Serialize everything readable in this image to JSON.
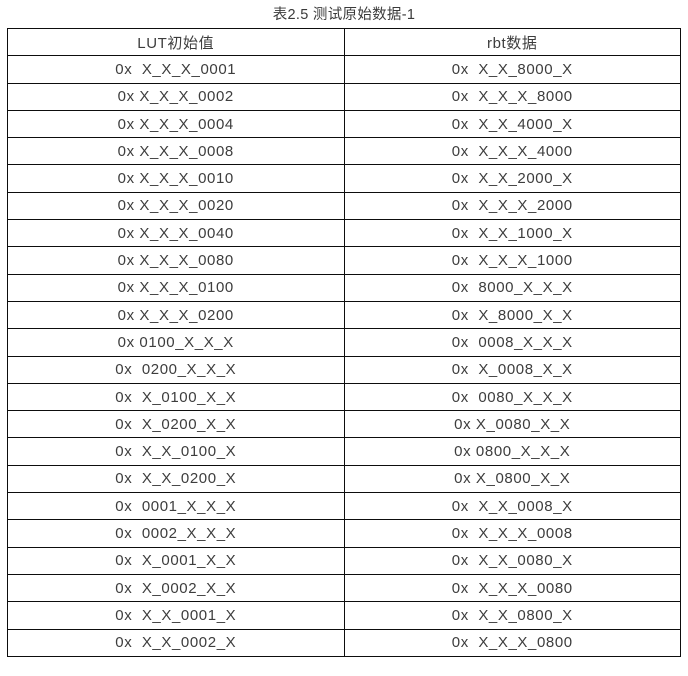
{
  "title": "表2.5 测试原始数据-1",
  "table": {
    "headers": [
      "LUT初始值",
      "rbt数据"
    ],
    "rows": [
      [
        "0x  X_X_X_0001",
        "0x  X_X_8000_X"
      ],
      [
        "0x X_X_X_0002",
        "0x  X_X_X_8000"
      ],
      [
        "0x X_X_X_0004",
        "0x  X_X_4000_X"
      ],
      [
        "0x X_X_X_0008",
        "0x  X_X_X_4000"
      ],
      [
        "0x X_X_X_0010",
        "0x  X_X_2000_X"
      ],
      [
        "0x X_X_X_0020",
        "0x  X_X_X_2000"
      ],
      [
        "0x X_X_X_0040",
        "0x  X_X_1000_X"
      ],
      [
        "0x X_X_X_0080",
        "0x  X_X_X_1000"
      ],
      [
        "0x X_X_X_0100",
        "0x  8000_X_X_X"
      ],
      [
        "0x X_X_X_0200",
        "0x  X_8000_X_X"
      ],
      [
        "0x 0100_X_X_X",
        "0x  0008_X_X_X"
      ],
      [
        "0x  0200_X_X_X",
        "0x  X_0008_X_X"
      ],
      [
        "0x  X_0100_X_X",
        "0x  0080_X_X_X"
      ],
      [
        "0x  X_0200_X_X",
        "0x X_0080_X_X"
      ],
      [
        "0x  X_X_0100_X",
        "0x 0800_X_X_X"
      ],
      [
        "0x  X_X_0200_X",
        "0x X_0800_X_X"
      ],
      [
        "0x  0001_X_X_X",
        "0x  X_X_0008_X"
      ],
      [
        "0x  0002_X_X_X",
        "0x  X_X_X_0008"
      ],
      [
        "0x  X_0001_X_X",
        "0x  X_X_0080_X"
      ],
      [
        "0x  X_0002_X_X",
        "0x  X_X_X_0080"
      ],
      [
        "0x  X_X_0001_X",
        "0x  X_X_0800_X"
      ],
      [
        "0x  X_X_0002_X",
        "0x  X_X_X_0800"
      ]
    ]
  },
  "colors": {
    "text": "#3d3d3d",
    "border": "#0d0d0d",
    "background": "#ffffff"
  }
}
